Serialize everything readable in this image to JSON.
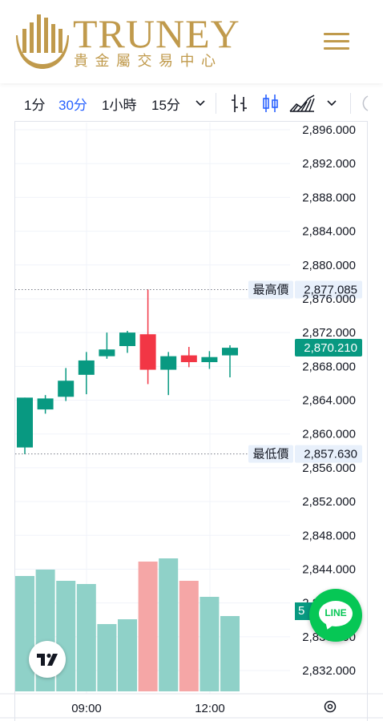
{
  "header": {
    "brand": "TRUNEY",
    "brand_sub": "貴金屬交易中心",
    "logo": "truney-logo",
    "menu_icon": "hamburger-menu-icon"
  },
  "toolbar": {
    "intervals": [
      "1分",
      "30分",
      "1小時",
      "15分"
    ],
    "active_interval": "30分",
    "dropdown_icon": "chevron-down-icon",
    "bar_style_icon": "bars-icon",
    "candle_icon": "candlestick-icon",
    "area_icon": "area-chart-icon"
  },
  "chart_data": {
    "type": "candlestick",
    "price_scale": [
      "2,896.000",
      "2,892.000",
      "2,888.000",
      "2,884.000",
      "2,880.000",
      "2,876.000",
      "2,872.000",
      "2,868.000",
      "2,864.000",
      "2,860.000",
      "2,856.000",
      "2,852.000",
      "2,848.000",
      "2,844.000",
      "2,840.000",
      "2,836.000",
      "2,832.000"
    ],
    "time_labels": [
      "09:00",
      "12:00"
    ],
    "candles": [
      {
        "open": 2858.4,
        "high": 2864.3,
        "low": 2857.6,
        "close": 2864.3
      },
      {
        "open": 2862.9,
        "high": 2864.6,
        "low": 2862.4,
        "close": 2864.2
      },
      {
        "open": 2864.4,
        "high": 2867.8,
        "low": 2863.9,
        "close": 2866.3
      },
      {
        "open": 2867.0,
        "high": 2869.7,
        "low": 2864.7,
        "close": 2868.7
      },
      {
        "open": 2869.2,
        "high": 2872.0,
        "low": 2868.9,
        "close": 2870.0
      },
      {
        "open": 2870.4,
        "high": 2872.2,
        "low": 2869.6,
        "close": 2872.0
      },
      {
        "open": 2871.8,
        "high": 2877.1,
        "low": 2865.9,
        "close": 2867.6
      },
      {
        "open": 2867.6,
        "high": 2869.7,
        "low": 2864.6,
        "close": 2869.2
      },
      {
        "open": 2869.3,
        "high": 2870.3,
        "low": 2867.9,
        "close": 2868.5
      },
      {
        "open": 2868.5,
        "high": 2869.8,
        "low": 2867.7,
        "close": 2869.1
      },
      {
        "open": 2869.3,
        "high": 2870.5,
        "low": 2866.7,
        "close": 2870.2
      }
    ],
    "volume_relative": [
      0.72,
      0.76,
      0.69,
      0.67,
      0.42,
      0.45,
      0.81,
      0.83,
      0.69,
      0.59,
      0.47
    ],
    "high_line": {
      "label": "最高價",
      "value": "2,877.085"
    },
    "low_line": {
      "label": "最低價",
      "value": "2,857.630"
    },
    "last_price": "2,870.210",
    "up_color": "#089981",
    "down_color": "#f23645",
    "vol_up_color": "#8fd1c8",
    "vol_down_color": "#f5a6a6"
  },
  "partial_tag": "5",
  "tv_logo": "tradingview-logo",
  "line_button": {
    "label": "LINE"
  },
  "settings_icon": "gear-icon"
}
